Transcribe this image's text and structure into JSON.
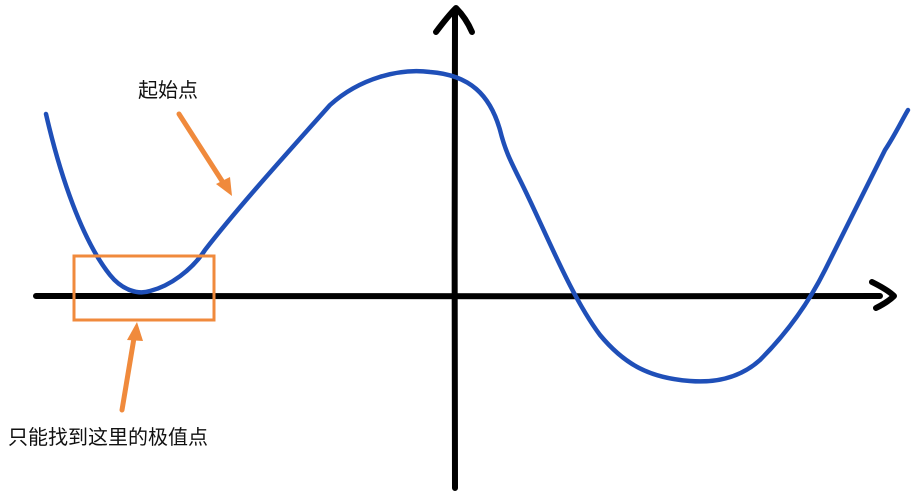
{
  "labels": {
    "start_point": "起始点",
    "note": "只能找到这里的极值点"
  },
  "colors": {
    "axis": "#000000",
    "curve": "#1f4fb8",
    "annotation": "#f08a3c"
  }
}
